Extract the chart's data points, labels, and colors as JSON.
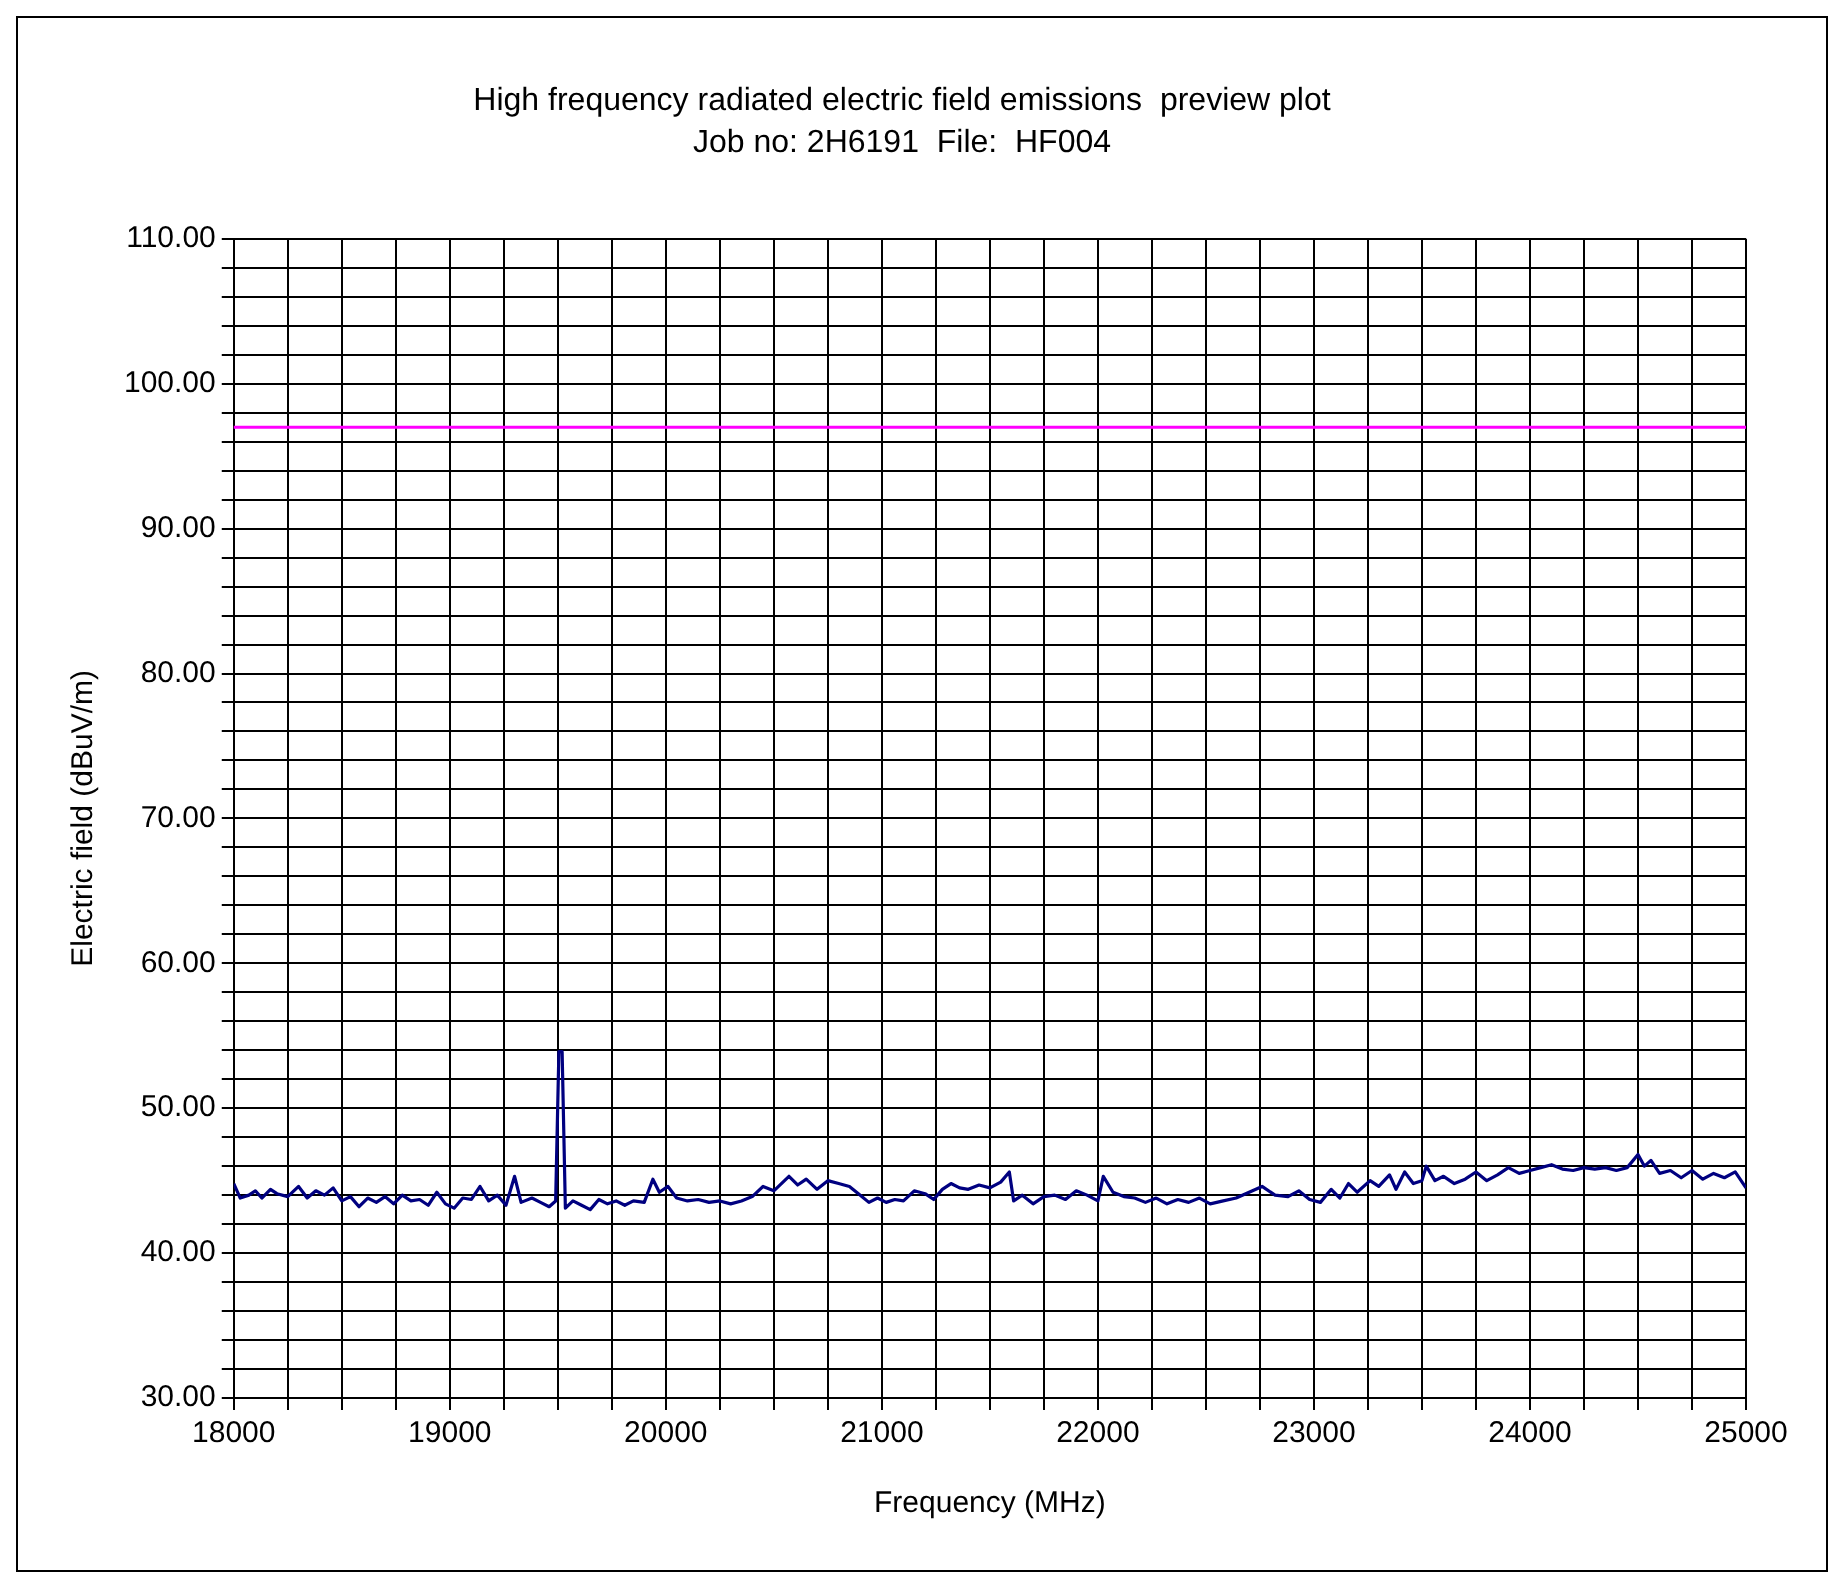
{
  "chart_data": {
    "type": "line",
    "title": "High frequency radiated electric field emissions  preview plot",
    "subtitle": "Job no: 2H6191  File:  HF004",
    "xlabel": "Frequency (MHz)",
    "ylabel": "Electric field (dBuV/m)",
    "xlim": [
      18000,
      25000
    ],
    "xticks": [
      18000,
      {
        "value": 18250,
        "label": null
      },
      {
        "value": 18500,
        "label": null
      },
      {
        "value": 18750,
        "label": null
      },
      19000,
      {
        "value": 19250,
        "label": null
      },
      {
        "value": 19500,
        "label": null
      },
      {
        "value": 19750,
        "label": null
      },
      20000,
      {
        "value": 20250,
        "label": null
      },
      {
        "value": 20500,
        "label": null
      },
      {
        "value": 20750,
        "label": null
      },
      21000,
      {
        "value": 21250,
        "label": null
      },
      {
        "value": 21500,
        "label": null
      },
      {
        "value": 21750,
        "label": null
      },
      22000,
      {
        "value": 22250,
        "label": null
      },
      {
        "value": 22500,
        "label": null
      },
      {
        "value": 22750,
        "label": null
      },
      23000,
      {
        "value": 23250,
        "label": null
      },
      {
        "value": 23500,
        "label": null
      },
      {
        "value": 23750,
        "label": null
      },
      24000,
      {
        "value": 24250,
        "label": null
      },
      {
        "value": 24500,
        "label": null
      },
      {
        "value": 24750,
        "label": null
      },
      25000
    ],
    "ylim": [
      30,
      110
    ],
    "yticks": [
      {
        "value": 30,
        "label": "30.00"
      },
      {
        "value": 32,
        "label": null
      },
      {
        "value": 34,
        "label": null
      },
      {
        "value": 36,
        "label": null
      },
      {
        "value": 38,
        "label": null
      },
      {
        "value": 40,
        "label": "40.00"
      },
      {
        "value": 42,
        "label": null
      },
      {
        "value": 44,
        "label": null
      },
      {
        "value": 46,
        "label": null
      },
      {
        "value": 48,
        "label": null
      },
      {
        "value": 50,
        "label": "50.00"
      },
      {
        "value": 52,
        "label": null
      },
      {
        "value": 54,
        "label": null
      },
      {
        "value": 56,
        "label": null
      },
      {
        "value": 58,
        "label": null
      },
      {
        "value": 60,
        "label": "60.00"
      },
      {
        "value": 62,
        "label": null
      },
      {
        "value": 64,
        "label": null
      },
      {
        "value": 66,
        "label": null
      },
      {
        "value": 68,
        "label": null
      },
      {
        "value": 70,
        "label": "70.00"
      },
      {
        "value": 72,
        "label": null
      },
      {
        "value": 74,
        "label": null
      },
      {
        "value": 76,
        "label": null
      },
      {
        "value": 78,
        "label": null
      },
      {
        "value": 80,
        "label": "80.00"
      },
      {
        "value": 82,
        "label": null
      },
      {
        "value": 84,
        "label": null
      },
      {
        "value": 86,
        "label": null
      },
      {
        "value": 88,
        "label": null
      },
      {
        "value": 90,
        "label": "90.00"
      },
      {
        "value": 92,
        "label": null
      },
      {
        "value": 94,
        "label": null
      },
      {
        "value": 96,
        "label": null
      },
      {
        "value": 98,
        "label": null
      },
      {
        "value": 100,
        "label": "100.00"
      },
      {
        "value": 102,
        "label": null
      },
      {
        "value": 104,
        "label": null
      },
      {
        "value": 106,
        "label": null
      },
      {
        "value": 108,
        "label": null
      },
      {
        "value": 110,
        "label": "110.00"
      }
    ],
    "grid": true,
    "legend": false,
    "marker": "none",
    "line_style": "solid",
    "ref_lines": [
      {
        "axis": "y",
        "value": 97,
        "color": "#ff00ff"
      }
    ],
    "x": [
      18000,
      18030,
      18070,
      18100,
      18130,
      18170,
      18200,
      18250,
      18300,
      18340,
      18380,
      18420,
      18460,
      18500,
      18540,
      18580,
      18620,
      18660,
      18700,
      18740,
      18780,
      18820,
      18860,
      18900,
      18940,
      18980,
      19020,
      19060,
      19100,
      19140,
      19180,
      19220,
      19260,
      19300,
      19330,
      19380,
      19420,
      19460,
      19490,
      19505,
      19520,
      19535,
      19570,
      19610,
      19650,
      19690,
      19730,
      19770,
      19810,
      19850,
      19900,
      19940,
      19970,
      20010,
      20050,
      20100,
      20150,
      20200,
      20250,
      20300,
      20350,
      20400,
      20450,
      20500,
      20570,
      20610,
      20650,
      20700,
      20750,
      20800,
      20850,
      20900,
      20940,
      20980,
      21020,
      21060,
      21100,
      21150,
      21200,
      21240,
      21280,
      21320,
      21360,
      21400,
      21450,
      21500,
      21550,
      21590,
      21610,
      21650,
      21700,
      21750,
      21800,
      21850,
      21900,
      21950,
      22000,
      22025,
      22070,
      22120,
      22170,
      22220,
      22270,
      22320,
      22370,
      22420,
      22470,
      22520,
      22580,
      22640,
      22700,
      22760,
      22820,
      22880,
      22930,
      22980,
      23030,
      23080,
      23120,
      23160,
      23200,
      23260,
      23300,
      23350,
      23380,
      23420,
      23460,
      23500,
      23520,
      23560,
      23600,
      23650,
      23700,
      23750,
      23800,
      23850,
      23900,
      23950,
      24000,
      24050,
      24100,
      24150,
      24200,
      24250,
      24300,
      24350,
      24400,
      24450,
      24500,
      24530,
      24560,
      24600,
      24650,
      24700,
      24750,
      24800,
      24850,
      24900,
      24950,
      25000
    ],
    "series": [
      {
        "color": "#000080",
        "values": [
          44.8,
          43.8,
          44.0,
          44.3,
          43.8,
          44.4,
          44.1,
          43.9,
          44.6,
          43.8,
          44.3,
          44.0,
          44.5,
          43.6,
          43.9,
          43.2,
          43.8,
          43.5,
          43.9,
          43.4,
          44.0,
          43.6,
          43.7,
          43.3,
          44.2,
          43.4,
          43.1,
          43.8,
          43.7,
          44.6,
          43.6,
          44.0,
          43.3,
          45.3,
          43.5,
          43.8,
          43.5,
          43.2,
          43.6,
          53.9,
          53.9,
          43.1,
          43.6,
          43.3,
          43.0,
          43.7,
          43.4,
          43.6,
          43.3,
          43.6,
          43.5,
          45.1,
          44.2,
          44.6,
          43.8,
          43.6,
          43.7,
          43.5,
          43.6,
          43.4,
          43.6,
          43.9,
          44.6,
          44.3,
          45.3,
          44.7,
          45.1,
          44.4,
          45.0,
          44.8,
          44.6,
          44.0,
          43.5,
          43.8,
          43.5,
          43.7,
          43.6,
          44.3,
          44.1,
          43.7,
          44.4,
          44.8,
          44.5,
          44.4,
          44.7,
          44.5,
          44.9,
          45.6,
          43.6,
          44.0,
          43.4,
          43.9,
          44.0,
          43.7,
          44.3,
          44.0,
          43.6,
          45.3,
          44.2,
          43.9,
          43.8,
          43.5,
          43.8,
          43.4,
          43.7,
          43.5,
          43.8,
          43.4,
          43.6,
          43.8,
          44.2,
          44.6,
          44.0,
          43.9,
          44.3,
          43.7,
          43.5,
          44.4,
          43.8,
          44.8,
          44.2,
          45.0,
          44.6,
          45.4,
          44.4,
          45.6,
          44.8,
          45.0,
          46.0,
          45.0,
          45.3,
          44.8,
          45.1,
          45.6,
          45.0,
          45.4,
          45.9,
          45.5,
          45.7,
          45.9,
          46.1,
          45.8,
          45.7,
          45.9,
          45.8,
          45.9,
          45.7,
          45.9,
          46.8,
          46.0,
          46.4,
          45.5,
          45.7,
          45.2,
          45.7,
          45.1,
          45.5,
          45.2,
          45.6,
          44.5
        ]
      }
    ]
  }
}
